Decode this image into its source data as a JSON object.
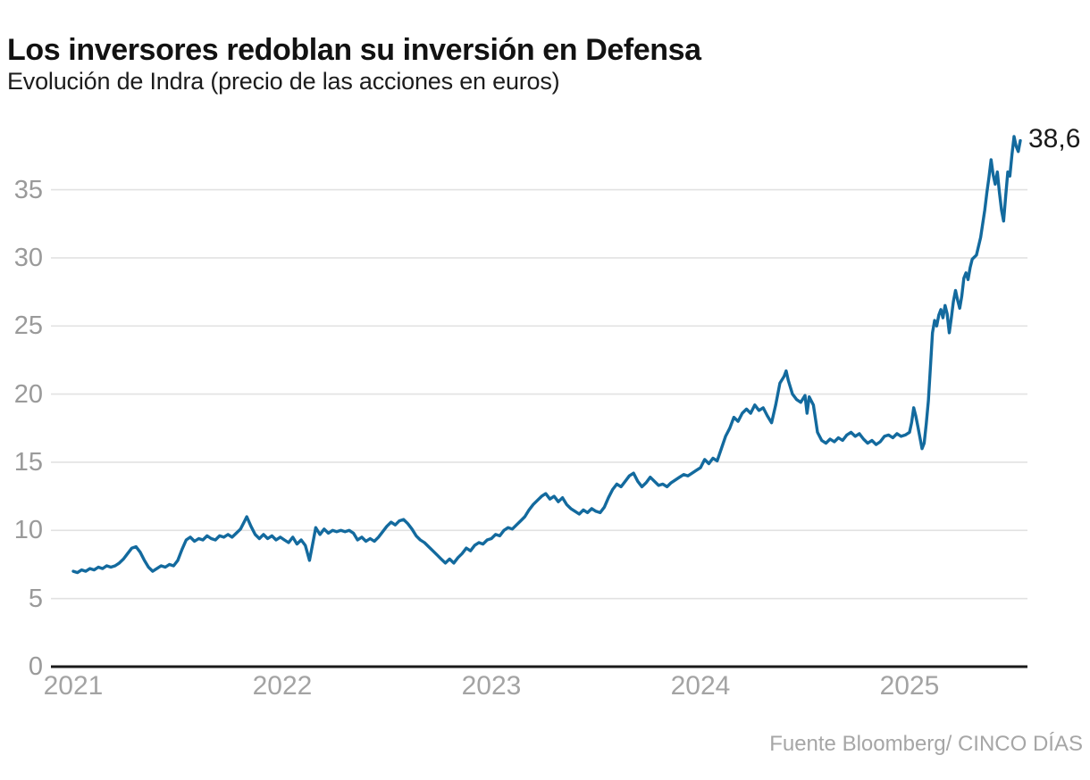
{
  "header": {
    "title": "Los inversores redoblan su inversión en Defensa",
    "subtitle": "Evolución de Indra (precio de las acciones en euros)"
  },
  "footer": {
    "source": "Fuente Bloomberg/ CINCO DÍAS"
  },
  "colors": {
    "line": "#136a9e",
    "axis": "#1a1a1a",
    "grid": "#e2e2e2",
    "ytick_text": "#9a9a9a",
    "xtick_text": "#a3a3a3",
    "title_text": "#121212",
    "source_text": "#a6a6a6",
    "annotation_text": "#1a1a1a"
  },
  "chart_data": {
    "type": "line",
    "title": "Los inversores redoblan su inversión en Defensa",
    "subtitle": "Evolución de Indra (precio de las acciones en euros)",
    "xlabel": "",
    "ylabel": "precio de las acciones en euros",
    "xlim": [
      2021.0,
      2025.65
    ],
    "ylim": [
      0,
      40
    ],
    "yticks": [
      0,
      5,
      10,
      15,
      20,
      25,
      30,
      35
    ],
    "xticks": [
      2021,
      2022,
      2023,
      2024,
      2025
    ],
    "grid": "horizontal",
    "legend": "none",
    "last_value_label": "38,6",
    "last_value": 38.6,
    "series": [
      {
        "name": "Indra",
        "points": [
          [
            2021.0,
            7.0
          ],
          [
            2021.02,
            6.9
          ],
          [
            2021.04,
            7.1
          ],
          [
            2021.06,
            7.0
          ],
          [
            2021.08,
            7.2
          ],
          [
            2021.1,
            7.1
          ],
          [
            2021.12,
            7.3
          ],
          [
            2021.14,
            7.2
          ],
          [
            2021.16,
            7.4
          ],
          [
            2021.18,
            7.3
          ],
          [
            2021.2,
            7.4
          ],
          [
            2021.22,
            7.6
          ],
          [
            2021.24,
            7.9
          ],
          [
            2021.26,
            8.3
          ],
          [
            2021.28,
            8.7
          ],
          [
            2021.3,
            8.8
          ],
          [
            2021.32,
            8.4
          ],
          [
            2021.34,
            7.8
          ],
          [
            2021.36,
            7.3
          ],
          [
            2021.38,
            7.0
          ],
          [
            2021.4,
            7.2
          ],
          [
            2021.42,
            7.4
          ],
          [
            2021.44,
            7.3
          ],
          [
            2021.46,
            7.5
          ],
          [
            2021.48,
            7.4
          ],
          [
            2021.5,
            7.8
          ],
          [
            2021.52,
            8.6
          ],
          [
            2021.54,
            9.3
          ],
          [
            2021.56,
            9.5
          ],
          [
            2021.58,
            9.2
          ],
          [
            2021.6,
            9.4
          ],
          [
            2021.62,
            9.3
          ],
          [
            2021.64,
            9.6
          ],
          [
            2021.66,
            9.4
          ],
          [
            2021.68,
            9.3
          ],
          [
            2021.7,
            9.6
          ],
          [
            2021.72,
            9.5
          ],
          [
            2021.74,
            9.7
          ],
          [
            2021.76,
            9.5
          ],
          [
            2021.78,
            9.8
          ],
          [
            2021.8,
            10.1
          ],
          [
            2021.82,
            10.7
          ],
          [
            2021.83,
            11.0
          ],
          [
            2021.85,
            10.3
          ],
          [
            2021.87,
            9.7
          ],
          [
            2021.89,
            9.4
          ],
          [
            2021.91,
            9.7
          ],
          [
            2021.93,
            9.4
          ],
          [
            2021.95,
            9.6
          ],
          [
            2021.97,
            9.3
          ],
          [
            2021.99,
            9.5
          ],
          [
            2022.01,
            9.3
          ],
          [
            2022.03,
            9.1
          ],
          [
            2022.05,
            9.5
          ],
          [
            2022.07,
            9.0
          ],
          [
            2022.09,
            9.3
          ],
          [
            2022.11,
            8.9
          ],
          [
            2022.13,
            7.8
          ],
          [
            2022.15,
            9.4
          ],
          [
            2022.16,
            10.2
          ],
          [
            2022.18,
            9.7
          ],
          [
            2022.2,
            10.1
          ],
          [
            2022.22,
            9.8
          ],
          [
            2022.24,
            10.0
          ],
          [
            2022.26,
            9.9
          ],
          [
            2022.28,
            10.0
          ],
          [
            2022.3,
            9.9
          ],
          [
            2022.32,
            10.0
          ],
          [
            2022.34,
            9.8
          ],
          [
            2022.36,
            9.3
          ],
          [
            2022.38,
            9.5
          ],
          [
            2022.4,
            9.2
          ],
          [
            2022.42,
            9.4
          ],
          [
            2022.44,
            9.2
          ],
          [
            2022.46,
            9.5
          ],
          [
            2022.48,
            9.9
          ],
          [
            2022.5,
            10.3
          ],
          [
            2022.52,
            10.6
          ],
          [
            2022.54,
            10.4
          ],
          [
            2022.56,
            10.7
          ],
          [
            2022.58,
            10.8
          ],
          [
            2022.6,
            10.5
          ],
          [
            2022.62,
            10.1
          ],
          [
            2022.64,
            9.6
          ],
          [
            2022.66,
            9.3
          ],
          [
            2022.68,
            9.1
          ],
          [
            2022.7,
            8.8
          ],
          [
            2022.72,
            8.5
          ],
          [
            2022.74,
            8.2
          ],
          [
            2022.76,
            7.9
          ],
          [
            2022.78,
            7.6
          ],
          [
            2022.8,
            7.9
          ],
          [
            2022.82,
            7.6
          ],
          [
            2022.84,
            8.0
          ],
          [
            2022.86,
            8.3
          ],
          [
            2022.88,
            8.7
          ],
          [
            2022.9,
            8.5
          ],
          [
            2022.92,
            8.9
          ],
          [
            2022.94,
            9.1
          ],
          [
            2022.96,
            9.0
          ],
          [
            2022.98,
            9.3
          ],
          [
            2023.0,
            9.4
          ],
          [
            2023.02,
            9.7
          ],
          [
            2023.04,
            9.6
          ],
          [
            2023.06,
            10.0
          ],
          [
            2023.08,
            10.2
          ],
          [
            2023.1,
            10.1
          ],
          [
            2023.12,
            10.4
          ],
          [
            2023.14,
            10.7
          ],
          [
            2023.16,
            11.0
          ],
          [
            2023.18,
            11.5
          ],
          [
            2023.2,
            11.9
          ],
          [
            2023.22,
            12.2
          ],
          [
            2023.24,
            12.5
          ],
          [
            2023.26,
            12.7
          ],
          [
            2023.28,
            12.3
          ],
          [
            2023.3,
            12.5
          ],
          [
            2023.32,
            12.1
          ],
          [
            2023.34,
            12.4
          ],
          [
            2023.36,
            11.9
          ],
          [
            2023.38,
            11.6
          ],
          [
            2023.4,
            11.4
          ],
          [
            2023.42,
            11.2
          ],
          [
            2023.44,
            11.5
          ],
          [
            2023.46,
            11.3
          ],
          [
            2023.48,
            11.6
          ],
          [
            2023.5,
            11.4
          ],
          [
            2023.52,
            11.3
          ],
          [
            2023.54,
            11.7
          ],
          [
            2023.56,
            12.4
          ],
          [
            2023.58,
            13.0
          ],
          [
            2023.6,
            13.4
          ],
          [
            2023.62,
            13.2
          ],
          [
            2023.64,
            13.6
          ],
          [
            2023.66,
            14.0
          ],
          [
            2023.68,
            14.2
          ],
          [
            2023.7,
            13.6
          ],
          [
            2023.72,
            13.2
          ],
          [
            2023.74,
            13.5
          ],
          [
            2023.76,
            13.9
          ],
          [
            2023.78,
            13.6
          ],
          [
            2023.8,
            13.3
          ],
          [
            2023.82,
            13.4
          ],
          [
            2023.84,
            13.2
          ],
          [
            2023.86,
            13.5
          ],
          [
            2023.88,
            13.7
          ],
          [
            2023.9,
            13.9
          ],
          [
            2023.92,
            14.1
          ],
          [
            2023.94,
            14.0
          ],
          [
            2023.96,
            14.2
          ],
          [
            2023.98,
            14.4
          ],
          [
            2024.0,
            14.6
          ],
          [
            2024.02,
            15.2
          ],
          [
            2024.04,
            14.9
          ],
          [
            2024.06,
            15.3
          ],
          [
            2024.08,
            15.1
          ],
          [
            2024.1,
            16.0
          ],
          [
            2024.12,
            16.9
          ],
          [
            2024.14,
            17.5
          ],
          [
            2024.16,
            18.3
          ],
          [
            2024.18,
            18.0
          ],
          [
            2024.2,
            18.6
          ],
          [
            2024.22,
            18.9
          ],
          [
            2024.24,
            18.6
          ],
          [
            2024.26,
            19.2
          ],
          [
            2024.28,
            18.8
          ],
          [
            2024.3,
            19.0
          ],
          [
            2024.32,
            18.4
          ],
          [
            2024.34,
            17.9
          ],
          [
            2024.36,
            19.2
          ],
          [
            2024.38,
            20.8
          ],
          [
            2024.4,
            21.3
          ],
          [
            2024.41,
            21.7
          ],
          [
            2024.42,
            21.0
          ],
          [
            2024.44,
            20.0
          ],
          [
            2024.46,
            19.6
          ],
          [
            2024.48,
            19.4
          ],
          [
            2024.5,
            19.9
          ],
          [
            2024.51,
            18.6
          ],
          [
            2024.52,
            19.8
          ],
          [
            2024.54,
            19.2
          ],
          [
            2024.56,
            17.2
          ],
          [
            2024.58,
            16.6
          ],
          [
            2024.6,
            16.4
          ],
          [
            2024.62,
            16.7
          ],
          [
            2024.64,
            16.5
          ],
          [
            2024.66,
            16.8
          ],
          [
            2024.68,
            16.6
          ],
          [
            2024.7,
            17.0
          ],
          [
            2024.72,
            17.2
          ],
          [
            2024.74,
            16.9
          ],
          [
            2024.76,
            17.1
          ],
          [
            2024.78,
            16.7
          ],
          [
            2024.8,
            16.4
          ],
          [
            2024.82,
            16.6
          ],
          [
            2024.84,
            16.3
          ],
          [
            2024.86,
            16.5
          ],
          [
            2024.88,
            16.9
          ],
          [
            2024.9,
            17.0
          ],
          [
            2024.92,
            16.8
          ],
          [
            2024.94,
            17.1
          ],
          [
            2024.96,
            16.9
          ],
          [
            2024.98,
            17.0
          ],
          [
            2025.0,
            17.2
          ],
          [
            2025.01,
            17.9
          ],
          [
            2025.02,
            19.0
          ],
          [
            2025.03,
            18.4
          ],
          [
            2025.04,
            17.6
          ],
          [
            2025.05,
            16.8
          ],
          [
            2025.06,
            16.0
          ],
          [
            2025.07,
            16.4
          ],
          [
            2025.08,
            17.8
          ],
          [
            2025.09,
            19.5
          ],
          [
            2025.1,
            22.0
          ],
          [
            2025.11,
            24.5
          ],
          [
            2025.12,
            25.4
          ],
          [
            2025.13,
            25.0
          ],
          [
            2025.14,
            25.8
          ],
          [
            2025.15,
            26.2
          ],
          [
            2025.16,
            25.6
          ],
          [
            2025.17,
            26.5
          ],
          [
            2025.18,
            25.9
          ],
          [
            2025.19,
            24.5
          ],
          [
            2025.2,
            25.6
          ],
          [
            2025.21,
            26.8
          ],
          [
            2025.22,
            27.6
          ],
          [
            2025.23,
            26.9
          ],
          [
            2025.24,
            26.3
          ],
          [
            2025.25,
            27.2
          ],
          [
            2025.26,
            28.5
          ],
          [
            2025.27,
            28.9
          ],
          [
            2025.28,
            28.4
          ],
          [
            2025.29,
            29.3
          ],
          [
            2025.3,
            29.9
          ],
          [
            2025.32,
            30.2
          ],
          [
            2025.34,
            31.5
          ],
          [
            2025.36,
            33.5
          ],
          [
            2025.37,
            34.8
          ],
          [
            2025.38,
            35.9
          ],
          [
            2025.39,
            37.2
          ],
          [
            2025.4,
            36.1
          ],
          [
            2025.41,
            35.4
          ],
          [
            2025.42,
            36.3
          ],
          [
            2025.43,
            34.8
          ],
          [
            2025.44,
            33.5
          ],
          [
            2025.45,
            32.7
          ],
          [
            2025.46,
            34.5
          ],
          [
            2025.47,
            36.3
          ],
          [
            2025.48,
            36.0
          ],
          [
            2025.49,
            37.6
          ],
          [
            2025.5,
            38.9
          ],
          [
            2025.51,
            38.2
          ],
          [
            2025.52,
            37.8
          ],
          [
            2025.53,
            38.6
          ]
        ]
      }
    ]
  }
}
